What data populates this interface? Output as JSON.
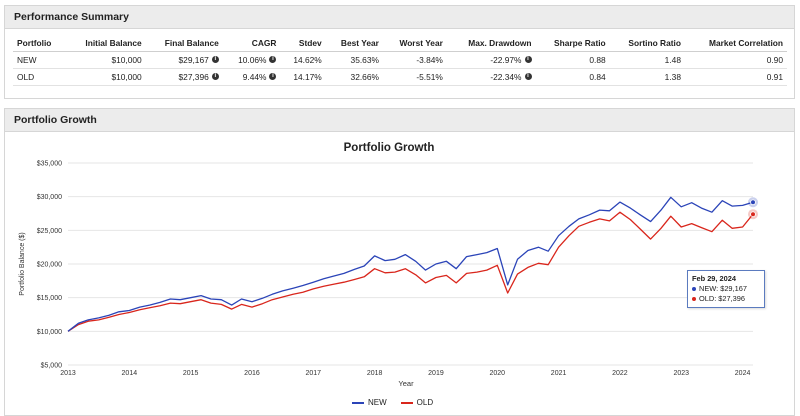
{
  "summary": {
    "title": "Performance Summary",
    "columns": [
      "Portfolio",
      "Initial Balance",
      "Final Balance",
      "CAGR",
      "Stdev",
      "Best Year",
      "Worst Year",
      "Max. Drawdown",
      "Sharpe Ratio",
      "Sortino Ratio",
      "Market Correlation"
    ],
    "rows": [
      {
        "portfolio": "NEW",
        "initial": "$10,000",
        "final": "$29,167",
        "cagr": "10.06%",
        "stdev": "14.62%",
        "best": "35.63%",
        "worst": "-3.84%",
        "drawdown": "-22.97%",
        "sharpe": "0.88",
        "sortino": "1.48",
        "corr": "0.90"
      },
      {
        "portfolio": "OLD",
        "initial": "$10,000",
        "final": "$27,396",
        "cagr": "9.44%",
        "stdev": "14.17%",
        "best": "32.66%",
        "worst": "-5.51%",
        "drawdown": "-22.34%",
        "sharpe": "0.84",
        "sortino": "1.38",
        "corr": "0.91"
      }
    ]
  },
  "growth": {
    "panel_title": "Portfolio Growth"
  },
  "tooltip": {
    "date": "Feb 29, 2024",
    "new_text": "NEW: $29,167",
    "old_text": "OLD: $27,396"
  },
  "colors": {
    "new": "#2b44b8",
    "old": "#d9261c",
    "grid": "#e6e6e6"
  },
  "chart_data": {
    "type": "line",
    "title": "Portfolio Growth",
    "xlabel": "Year",
    "ylabel": "Portfolio Balance ($)",
    "xlim": [
      2013.0,
      2024.17
    ],
    "ylim": [
      5000,
      35000
    ],
    "y_ticks": [
      5000,
      10000,
      15000,
      20000,
      25000,
      30000,
      35000
    ],
    "y_tick_labels": [
      "$5,000",
      "$10,000",
      "$15,000",
      "$20,000",
      "$25,000",
      "$30,000",
      "$35,000"
    ],
    "x_ticks": [
      2013,
      2014,
      2015,
      2016,
      2017,
      2018,
      2019,
      2020,
      2021,
      2022,
      2023,
      2024
    ],
    "x_tick_labels": [
      "2013",
      "2014",
      "2015",
      "2016",
      "2017",
      "2018",
      "2019",
      "2020",
      "2021",
      "2022",
      "2023",
      "2024"
    ],
    "legend_position": "bottom-center",
    "grid": true,
    "x": [
      2013.0,
      2013.17,
      2013.33,
      2013.5,
      2013.67,
      2013.83,
      2014.0,
      2014.17,
      2014.33,
      2014.5,
      2014.67,
      2014.83,
      2015.0,
      2015.17,
      2015.33,
      2015.5,
      2015.67,
      2015.83,
      2016.0,
      2016.17,
      2016.33,
      2016.5,
      2016.67,
      2016.83,
      2017.0,
      2017.17,
      2017.33,
      2017.5,
      2017.67,
      2017.83,
      2018.0,
      2018.17,
      2018.33,
      2018.5,
      2018.67,
      2018.83,
      2019.0,
      2019.17,
      2019.33,
      2019.5,
      2019.67,
      2019.83,
      2020.0,
      2020.17,
      2020.33,
      2020.5,
      2020.67,
      2020.83,
      2021.0,
      2021.17,
      2021.33,
      2021.5,
      2021.67,
      2021.83,
      2022.0,
      2022.17,
      2022.33,
      2022.5,
      2022.67,
      2022.83,
      2023.0,
      2023.17,
      2023.33,
      2023.5,
      2023.67,
      2023.83,
      2024.0,
      2024.17
    ],
    "series": [
      {
        "name": "NEW",
        "values": [
          10000,
          11200,
          11700,
          12000,
          12400,
          12900,
          13100,
          13600,
          13900,
          14300,
          14800,
          14700,
          15000,
          15300,
          14800,
          14700,
          13900,
          14800,
          14400,
          14900,
          15500,
          16000,
          16400,
          16800,
          17300,
          17800,
          18200,
          18600,
          19200,
          19700,
          21200,
          20500,
          20700,
          21400,
          20400,
          19100,
          20000,
          20400,
          19300,
          21100,
          21400,
          21700,
          22300,
          16900,
          20700,
          22000,
          22500,
          21900,
          24200,
          25600,
          26700,
          27300,
          28000,
          27900,
          29200,
          28300,
          27300,
          26300,
          28000,
          29900,
          28500,
          29100,
          28300,
          27700,
          29400,
          28600,
          28700,
          29167
        ]
      },
      {
        "name": "OLD",
        "values": [
          10000,
          11000,
          11500,
          11700,
          12100,
          12500,
          12800,
          13200,
          13500,
          13800,
          14200,
          14100,
          14400,
          14700,
          14200,
          14000,
          13300,
          14000,
          13600,
          14100,
          14700,
          15100,
          15500,
          15800,
          16300,
          16700,
          17000,
          17300,
          17700,
          18100,
          19300,
          18700,
          18800,
          19300,
          18400,
          17200,
          18000,
          18300,
          17200,
          18600,
          18800,
          19100,
          19800,
          15700,
          18500,
          19500,
          20100,
          19900,
          22500,
          24200,
          25600,
          26200,
          26700,
          26400,
          27700,
          26600,
          25200,
          23700,
          25300,
          27100,
          25500,
          26000,
          25400,
          24800,
          26500,
          25300,
          25500,
          27396
        ]
      }
    ]
  }
}
